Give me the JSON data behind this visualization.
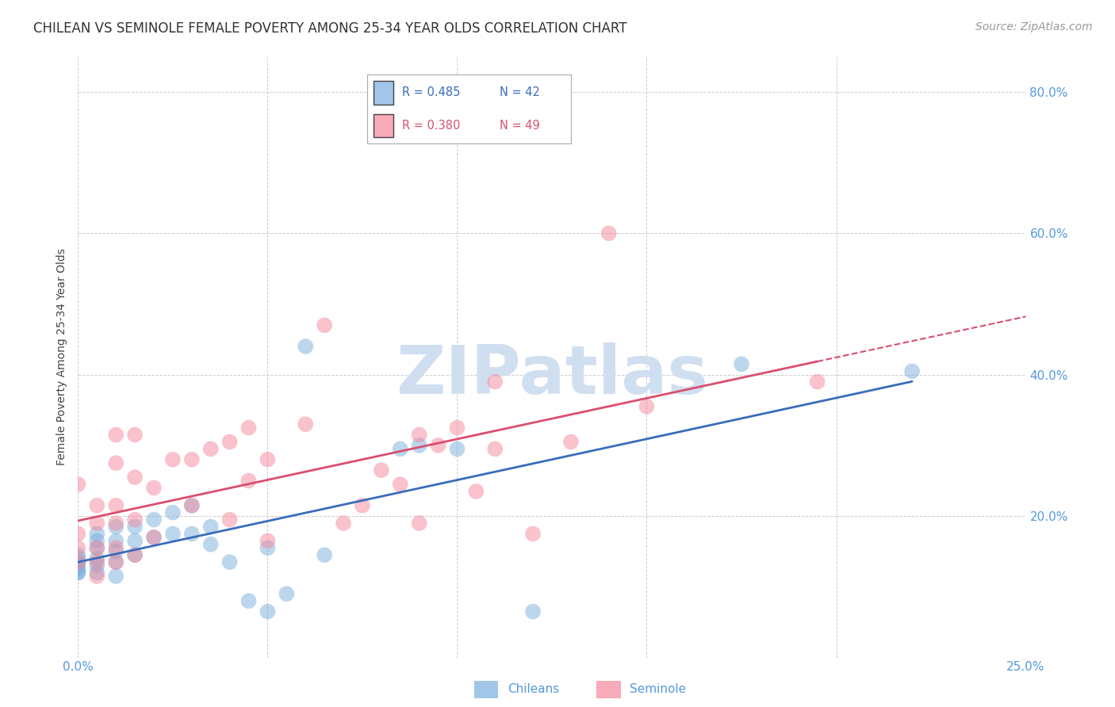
{
  "title": "CHILEAN VS SEMINOLE FEMALE POVERTY AMONG 25-34 YEAR OLDS CORRELATION CHART",
  "source": "Source: ZipAtlas.com",
  "ylabel": "Female Poverty Among 25-34 Year Olds",
  "xlim": [
    0.0,
    0.25
  ],
  "ylim": [
    0.0,
    0.85
  ],
  "chilean_color": "#7aaedd",
  "seminole_color": "#f4879a",
  "chilean_line_color": "#3a6dbb",
  "seminole_line_color": "#d94f6e",
  "chilean_R": 0.485,
  "chilean_N": 42,
  "seminole_R": 0.38,
  "seminole_N": 49,
  "background_color": "#ffffff",
  "grid_color": "#cccccc",
  "tick_color": "#5599dd",
  "title_color": "#333333",
  "ylabel_color": "#444444",
  "watermark_color": "#d0dff0",
  "chilean_x": [
    0.0,
    0.0,
    0.0,
    0.0,
    0.0,
    0.0,
    0.0,
    0.005,
    0.005,
    0.005,
    0.005,
    0.005,
    0.005,
    0.01,
    0.01,
    0.01,
    0.01,
    0.01,
    0.015,
    0.015,
    0.015,
    0.02,
    0.02,
    0.025,
    0.025,
    0.03,
    0.03,
    0.035,
    0.035,
    0.04,
    0.045,
    0.05,
    0.05,
    0.055,
    0.06,
    0.065,
    0.085,
    0.09,
    0.175,
    0.22,
    0.1,
    0.12
  ],
  "chilean_y": [
    0.12,
    0.12,
    0.125,
    0.13,
    0.135,
    0.14,
    0.145,
    0.12,
    0.13,
    0.14,
    0.155,
    0.165,
    0.175,
    0.115,
    0.135,
    0.15,
    0.165,
    0.185,
    0.145,
    0.165,
    0.185,
    0.17,
    0.195,
    0.175,
    0.205,
    0.175,
    0.215,
    0.16,
    0.185,
    0.135,
    0.08,
    0.065,
    0.155,
    0.09,
    0.44,
    0.145,
    0.295,
    0.3,
    0.415,
    0.405,
    0.295,
    0.065
  ],
  "seminole_x": [
    0.0,
    0.0,
    0.0,
    0.0,
    0.005,
    0.005,
    0.005,
    0.005,
    0.005,
    0.01,
    0.01,
    0.01,
    0.01,
    0.01,
    0.01,
    0.015,
    0.015,
    0.015,
    0.015,
    0.02,
    0.02,
    0.025,
    0.03,
    0.03,
    0.035,
    0.04,
    0.04,
    0.045,
    0.045,
    0.05,
    0.05,
    0.06,
    0.065,
    0.07,
    0.075,
    0.08,
    0.085,
    0.09,
    0.09,
    0.095,
    0.1,
    0.105,
    0.11,
    0.12,
    0.13,
    0.14,
    0.15,
    0.195,
    0.11
  ],
  "seminole_y": [
    0.135,
    0.155,
    0.175,
    0.245,
    0.115,
    0.135,
    0.155,
    0.19,
    0.215,
    0.135,
    0.155,
    0.19,
    0.215,
    0.275,
    0.315,
    0.145,
    0.195,
    0.255,
    0.315,
    0.17,
    0.24,
    0.28,
    0.215,
    0.28,
    0.295,
    0.195,
    0.305,
    0.25,
    0.325,
    0.165,
    0.28,
    0.33,
    0.47,
    0.19,
    0.215,
    0.265,
    0.245,
    0.19,
    0.315,
    0.3,
    0.325,
    0.235,
    0.295,
    0.175,
    0.305,
    0.6,
    0.355,
    0.39,
    0.39
  ],
  "title_fontsize": 12,
  "label_fontsize": 10,
  "tick_fontsize": 11,
  "legend_fontsize": 11,
  "source_fontsize": 10
}
